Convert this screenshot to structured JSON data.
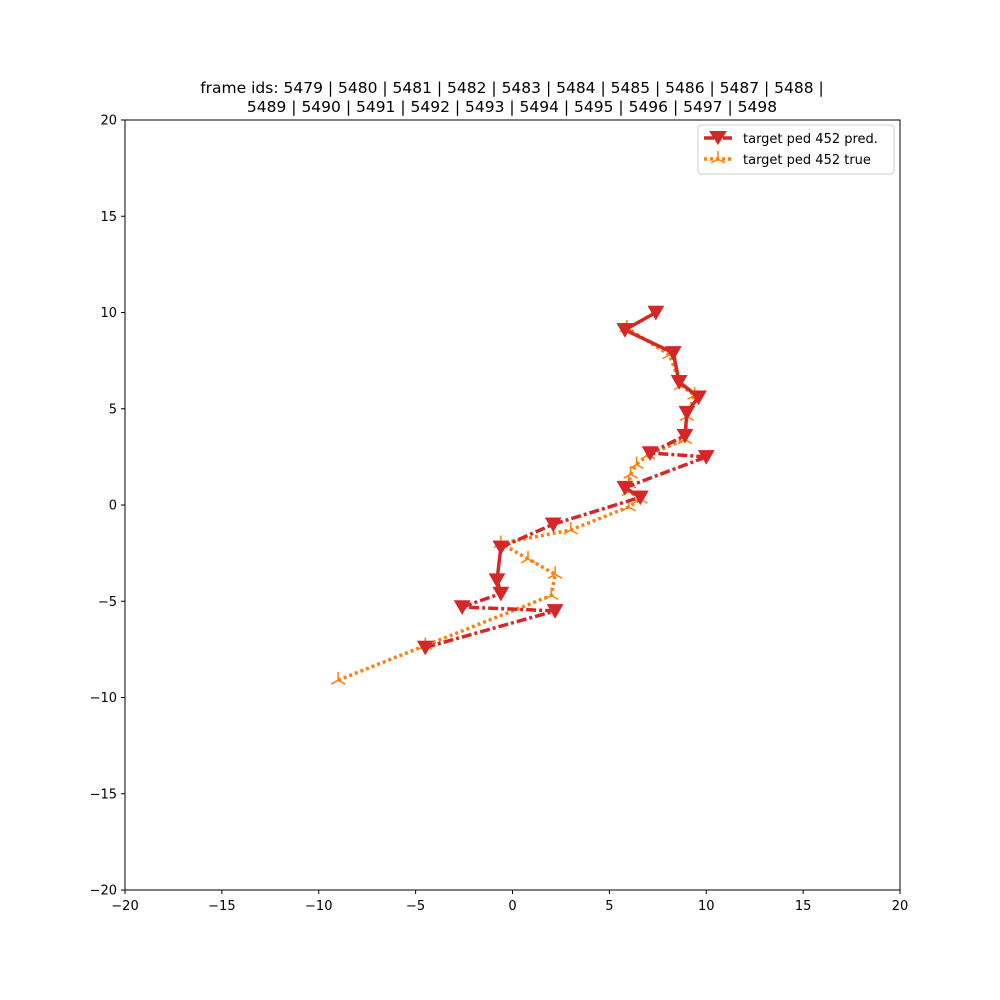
{
  "chart_data": {
    "type": "line",
    "title_lines": [
      "frame ids: 5479 | 5480 | 5481 | 5482 | 5483 | 5484 | 5485 | 5486 | 5487 | 5488 |",
      "5489 | 5490 | 5491 | 5492 | 5493 | 5494 | 5495 | 5496 | 5497 | 5498"
    ],
    "xlabel": "",
    "ylabel": "",
    "xlim": [
      -20,
      20
    ],
    "ylim": [
      -20,
      20
    ],
    "xticks": [
      -20,
      -15,
      -10,
      -5,
      0,
      5,
      10,
      15,
      20
    ],
    "yticks": [
      -20,
      -15,
      -10,
      -5,
      0,
      5,
      10,
      15,
      20
    ],
    "grid": false,
    "legend_position": "top-right",
    "series": [
      {
        "name": "target ped 452 pred.",
        "color": "#d62728",
        "marker": "triangle-down",
        "points": [
          [
            -4.5,
            -7.4
          ],
          [
            2.2,
            -5.5
          ],
          [
            -2.6,
            -5.3
          ],
          [
            -0.6,
            -4.6
          ],
          [
            -0.8,
            -3.9
          ],
          [
            -0.6,
            -2.2
          ],
          [
            2.1,
            -1.0
          ],
          [
            6.6,
            0.4
          ],
          [
            5.8,
            0.9
          ],
          [
            10.0,
            2.5
          ],
          [
            7.1,
            2.7
          ],
          [
            8.9,
            3.6
          ],
          [
            9.0,
            4.8
          ],
          [
            9.6,
            5.6
          ],
          [
            8.6,
            6.4
          ],
          [
            8.3,
            7.9
          ],
          [
            5.8,
            9.1
          ],
          [
            7.4,
            10.0
          ]
        ],
        "segment_styles": [
          "dashdot",
          "dashdot",
          "dashdot",
          "solid",
          "solid",
          "dashdot",
          "dashdot",
          "solid",
          "dashdot",
          "dashdot",
          "dashdot",
          "solid",
          "solid",
          "solid",
          "solid",
          "solid",
          "solid"
        ]
      },
      {
        "name": "target ped 452 true",
        "color": "#ff7f0e",
        "marker": "tri-down",
        "points": [
          [
            -9.0,
            -9.1
          ],
          [
            -4.5,
            -7.3
          ],
          [
            2.0,
            -4.7
          ],
          [
            2.2,
            -3.6
          ],
          [
            0.8,
            -2.8
          ],
          [
            -0.6,
            -2.0
          ],
          [
            3.0,
            -1.3
          ],
          [
            6.0,
            -0.1
          ],
          [
            6.6,
            0.3
          ],
          [
            6.0,
            0.7
          ],
          [
            6.0,
            1.1
          ],
          [
            6.1,
            1.6
          ],
          [
            6.4,
            2.1
          ],
          [
            7.0,
            2.6
          ],
          [
            8.9,
            3.4
          ],
          [
            9.0,
            4.6
          ],
          [
            9.4,
            5.7
          ],
          [
            8.7,
            6.2
          ],
          [
            8.1,
            7.8
          ],
          [
            5.9,
            9.2
          ]
        ]
      }
    ]
  }
}
